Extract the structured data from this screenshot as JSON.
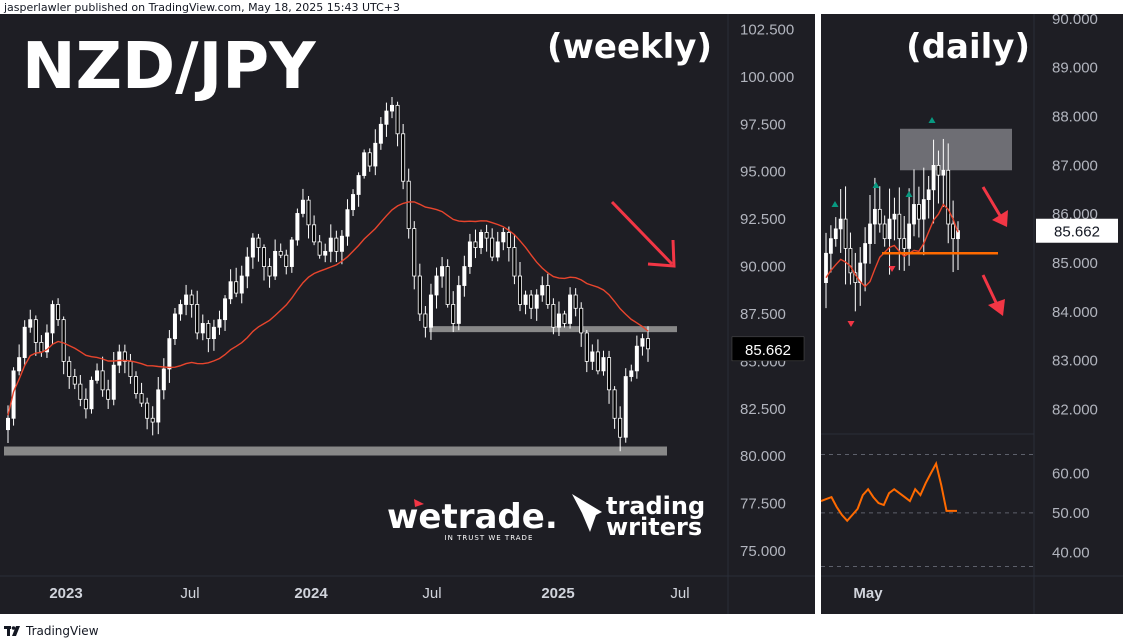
{
  "header": {
    "text": "jasperlawler published on TradingView.com, May 18, 2025 15:43 UTC+3"
  },
  "footer": {
    "brand": "TradingView"
  },
  "colors": {
    "panel_bg": "#1e1e24",
    "candle_up": "#ffffff",
    "candle_down": "#000000",
    "ma": "#e8452d",
    "support": "#888888",
    "arrow": "#f23645",
    "level": "#ff6a00",
    "pivot_up": "#089981",
    "pivot_down": "#f23645"
  },
  "overlays": {
    "title": "NZD/JPY",
    "weekly_tag": "(weekly)",
    "daily_tag": "(daily)"
  },
  "logos": {
    "wetrade": "wetrade.",
    "wetrade_tagline": "IN TRUST WE TRADE",
    "tw_line1": "trading",
    "tw_line2": "writers"
  },
  "chart_data": [
    {
      "type": "candlestick",
      "title": "(weekly)",
      "x_ticks": [
        "2023",
        "Jul",
        "2024",
        "Jul",
        "2025",
        "Jul"
      ],
      "y_ticks": [
        "102.500",
        "100.000",
        "97.500",
        "95.000",
        "92.500",
        "90.000",
        "87.500",
        "85.000",
        "82.500",
        "80.000",
        "77.500",
        "75.000"
      ],
      "ylim": [
        74.0,
        103.0
      ],
      "price_label": "85.662",
      "support_levels": [
        86.7,
        80.3
      ],
      "closes": [
        82.0,
        84.5,
        85.2,
        86.8,
        87.2,
        86.0,
        85.5,
        86.5,
        88.0,
        87.2,
        85.0,
        84.2,
        83.8,
        83.0,
        82.5,
        84.0,
        84.5,
        83.5,
        83.0,
        84.8,
        85.5,
        85.0,
        84.2,
        83.3,
        82.8,
        82.0,
        81.8,
        83.5,
        84.6,
        86.2,
        87.5,
        88.0,
        88.5,
        88.0,
        86.5,
        87.0,
        86.2,
        86.8,
        87.2,
        88.3,
        89.2,
        88.6,
        89.5,
        90.5,
        91.5,
        91.0,
        90.0,
        89.5,
        90.8,
        90.6,
        90.0,
        91.4,
        92.8,
        93.5,
        92.2,
        91.3,
        90.6,
        90.8,
        91.5,
        90.8,
        91.6,
        93.0,
        93.8,
        94.8,
        96.0,
        95.3,
        96.5,
        97.5,
        98.2,
        98.5,
        97.0,
        94.5,
        92.0,
        89.5,
        87.5,
        86.8,
        88.5,
        89.5,
        90.0,
        88.0,
        87.0,
        89.0,
        90.0,
        91.3,
        91.0,
        91.8,
        91.5,
        90.5,
        91.3,
        91.8,
        91.0,
        89.5,
        88.0,
        88.5,
        87.8,
        88.5,
        89.0,
        88.0,
        86.8,
        87.5,
        87.0,
        88.5,
        87.8,
        86.5,
        85.0,
        85.5,
        84.5,
        85.2,
        83.5,
        82.0,
        81.0,
        84.2,
        84.5,
        85.8,
        86.2,
        85.662
      ],
      "ma_period": 26
    },
    {
      "type": "candlestick",
      "title": "(daily)",
      "x_ticks": [
        "May"
      ],
      "y_ticks": [
        "90.000",
        "89.000",
        "88.000",
        "87.000",
        "86.000",
        "85.000",
        "84.000",
        "83.000",
        "82.000"
      ],
      "ylim": [
        81.5,
        90.1
      ],
      "price_label": "85.662",
      "level": 85.2,
      "resistance_zone": [
        86.9,
        87.75
      ],
      "closes": [
        85.2,
        85.5,
        85.7,
        85.9,
        85.3,
        84.8,
        84.6,
        85.0,
        85.4,
        85.8,
        86.1,
        85.8,
        85.5,
        85.9,
        86.0,
        85.5,
        85.3,
        85.8,
        86.2,
        85.9,
        86.3,
        86.5,
        87.0,
        86.8,
        86.9,
        85.8,
        85.5,
        85.662
      ],
      "rsi": {
        "y_ticks": [
          "60.00",
          "50.00",
          "40.00"
        ],
        "ylim": [
          34,
          70
        ],
        "values": [
          53,
          53.5,
          54,
          51.5,
          49.5,
          48,
          49.5,
          51,
          54.5,
          56,
          54,
          52.5,
          52,
          55,
          56,
          55,
          54,
          53,
          56,
          54.5,
          57.5,
          60,
          62.5,
          57,
          50.5,
          50.5,
          50.5
        ]
      }
    }
  ]
}
